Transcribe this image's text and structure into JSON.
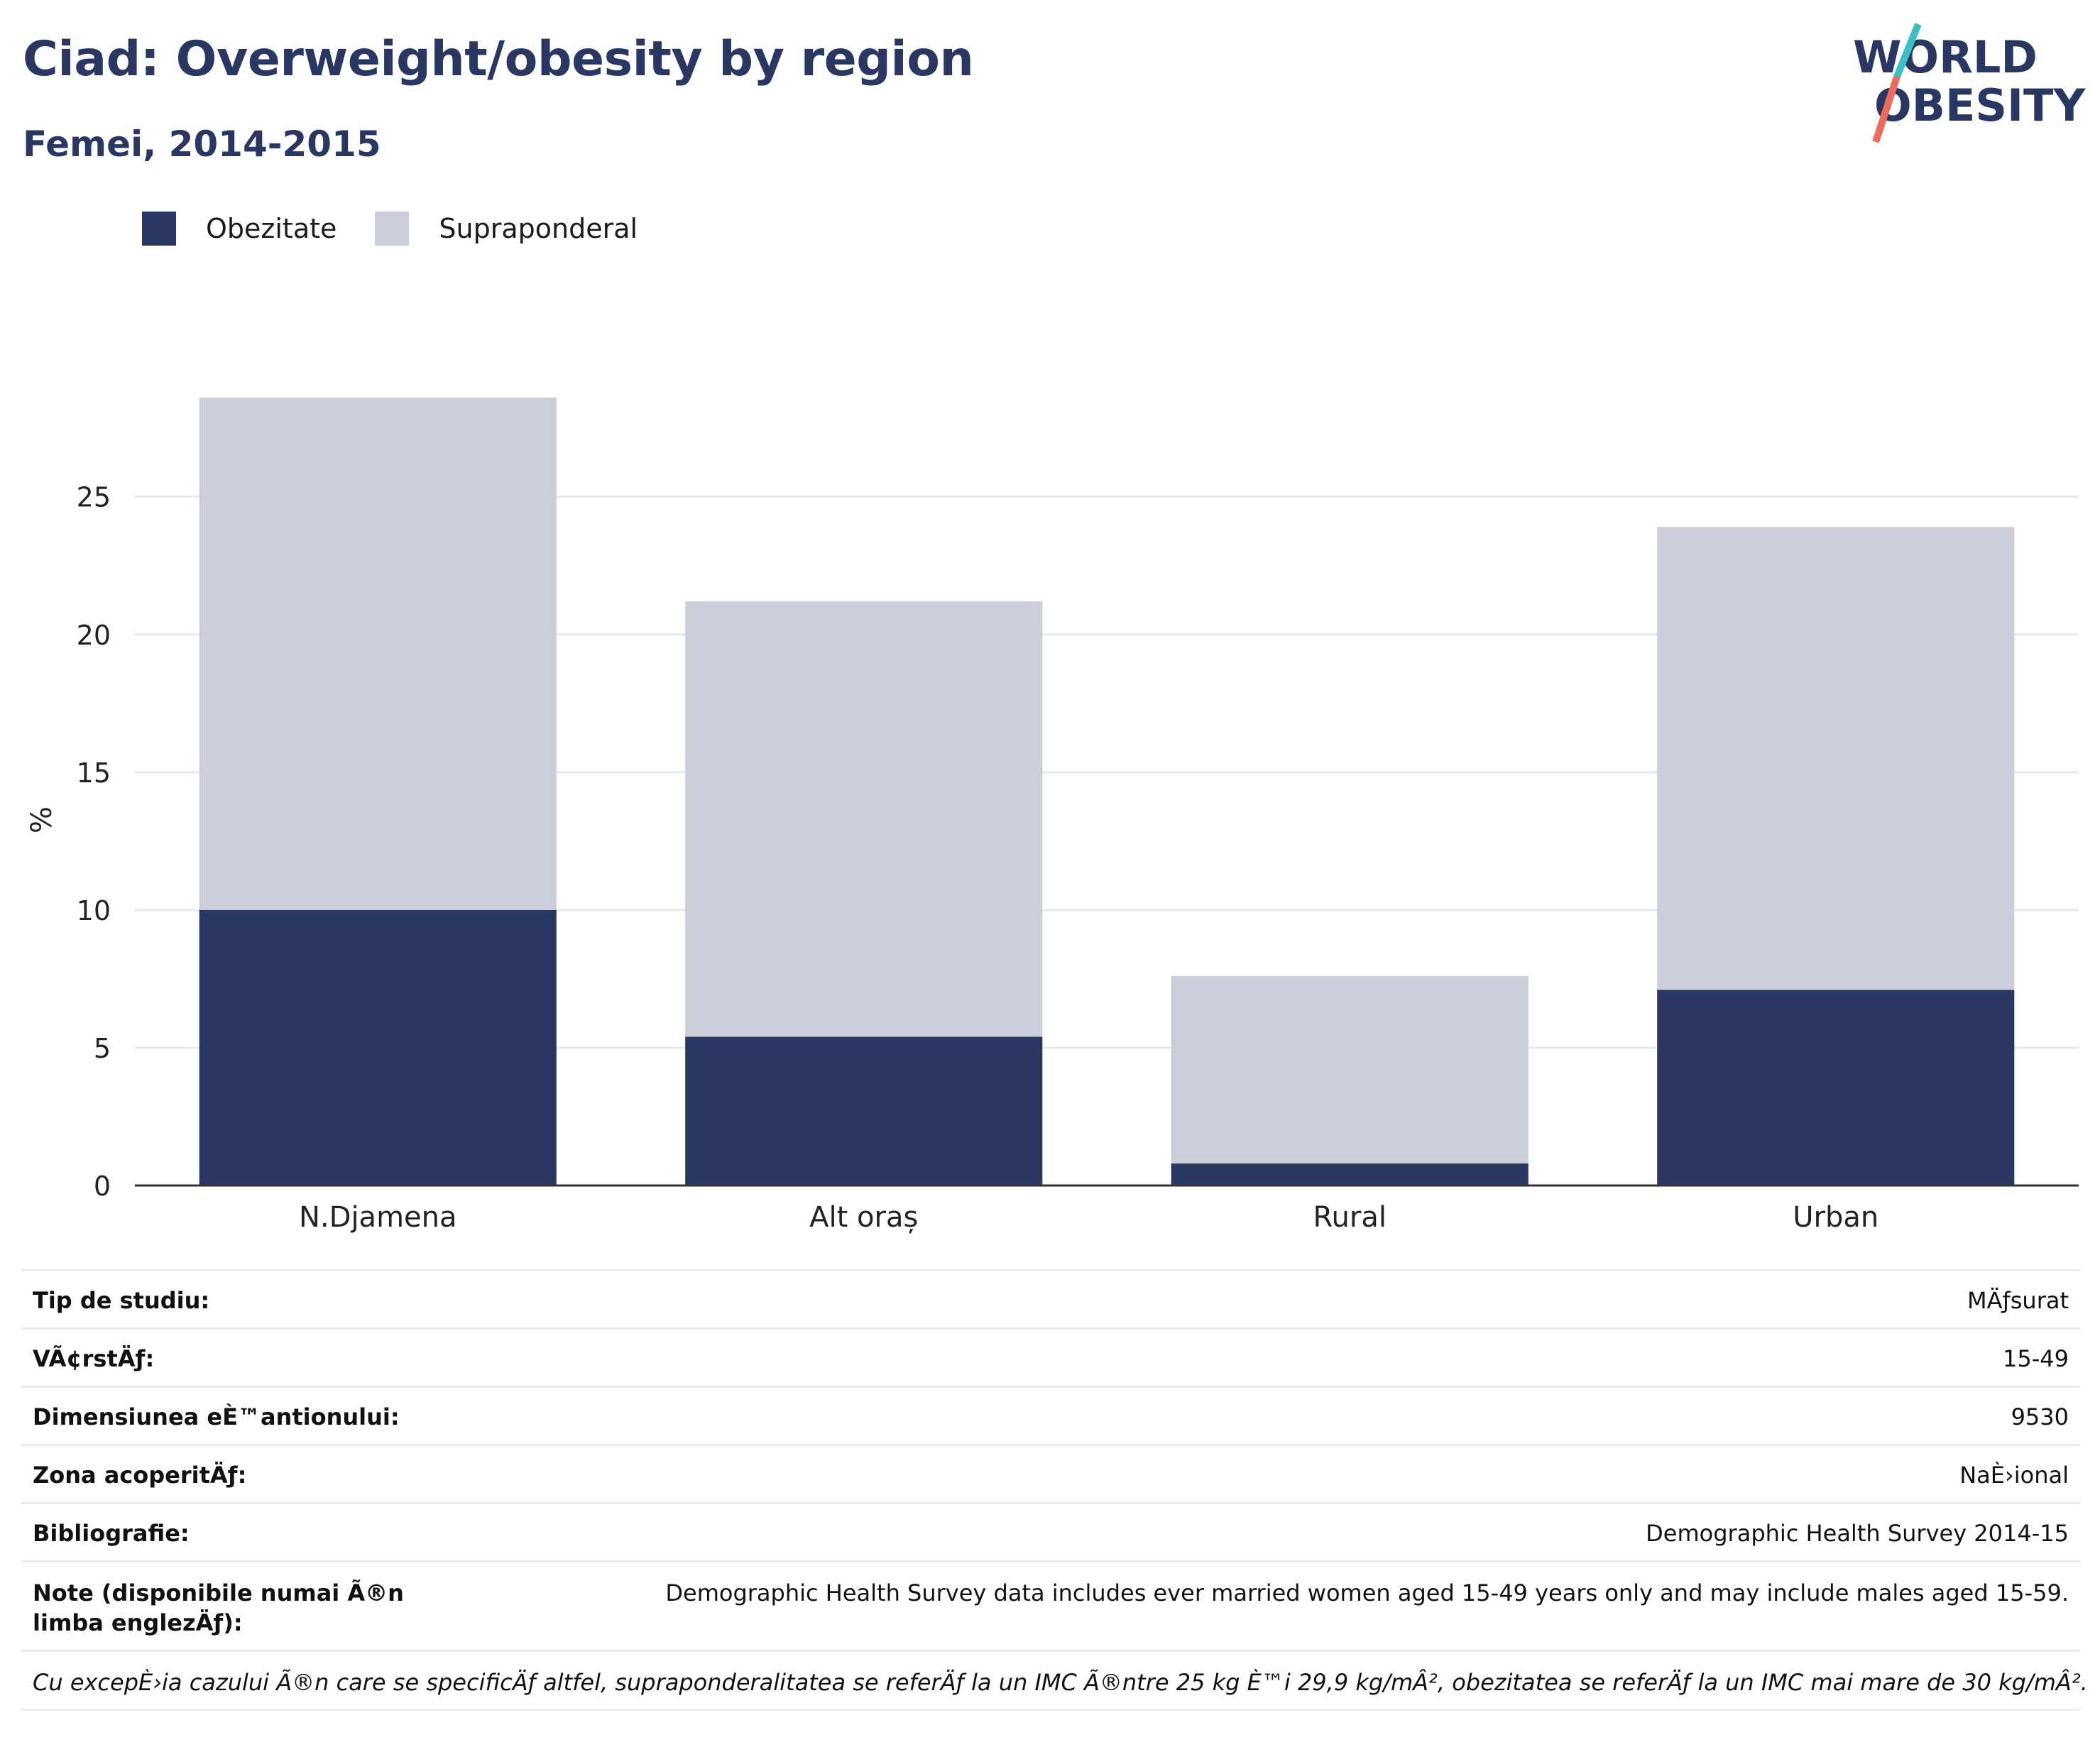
{
  "header": {
    "title": "Ciad: Overweight/obesity by region",
    "subtitle": "Femei, 2014-2015"
  },
  "logo": {
    "line1": "WORLD",
    "line2": "OBESITY",
    "colors": {
      "text": "#2b3763",
      "teal": "#3bbfc4",
      "coral": "#ee6a5a"
    }
  },
  "legend": [
    {
      "label": "Obezitate",
      "color": "#2b3763"
    },
    {
      "label": "Supraponderal",
      "color": "#cbcdd8"
    }
  ],
  "chart_data": {
    "type": "bar",
    "stacked": true,
    "categories": [
      "N.Djamena",
      "Alt oraș",
      "Rural",
      "Urban"
    ],
    "series": [
      {
        "name": "Obezitate",
        "color": "#2b3763",
        "values": [
          10.0,
          5.4,
          0.8,
          7.1
        ]
      },
      {
        "name": "Supraponderal",
        "color": "#cbcdd8",
        "values": [
          18.6,
          15.8,
          6.8,
          16.8
        ]
      }
    ],
    "ylabel": "%",
    "xlabel": "",
    "ylim": [
      0,
      28.6
    ],
    "yticks": [
      0,
      5,
      10,
      15,
      20,
      25
    ],
    "grid": true,
    "legend_position": "top-left"
  },
  "info": {
    "rows": [
      {
        "key": "Tip de studiu:",
        "value": "MÄƒsurat"
      },
      {
        "key": "VÃ¢rstÄƒ:",
        "value": "15-49"
      },
      {
        "key": "Dimensiunea eÈ™antionului:",
        "value": "9530"
      },
      {
        "key": "Zona acoperitÄƒ:",
        "value": "NaÈ›ional"
      },
      {
        "key": "Bibliografie:",
        "value": "Demographic Health Survey 2014-15"
      },
      {
        "key": "Note (disponibile numai Ã®n limba englezÄƒ):",
        "value": "Demographic Health Survey data includes ever married women aged 15-49 years only and may include males aged 15-59."
      }
    ],
    "footnote": "Cu excepÈ›ia cazului Ã®n care se specificÄƒ altfel, supraponderalitatea se referÄƒ la un IMC Ã®ntre 25 kg È™i 29,9 kg/mÂ², obezitatea se referÄƒ la un IMC mai mare de 30 kg/mÂ²."
  }
}
